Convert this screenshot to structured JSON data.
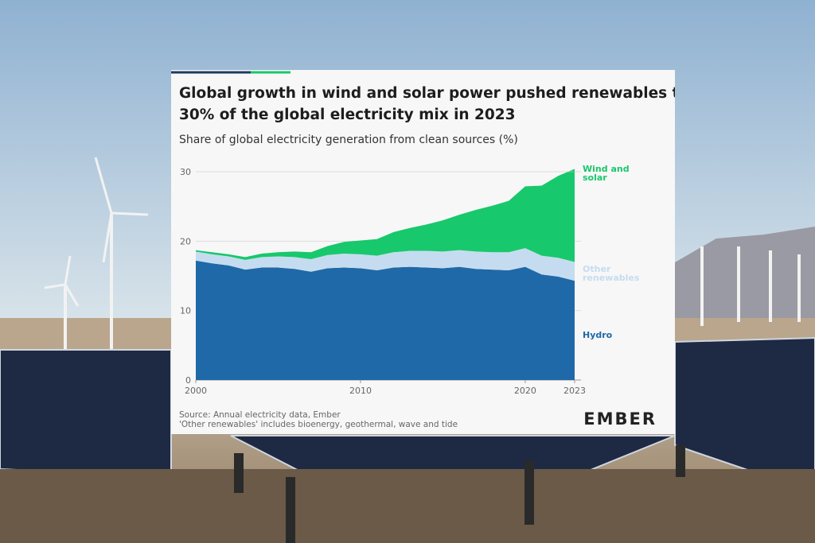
{
  "chart_data": {
    "type": "stacked-area",
    "title": [
      "Global growth in wind and solar power pushed renewables to",
      "30% of the global electricity mix in 2023"
    ],
    "subtitle": "Share of global electricity generation from clean sources (%)",
    "x": [
      2000,
      2001,
      2002,
      2003,
      2004,
      2005,
      2006,
      2007,
      2008,
      2009,
      2010,
      2011,
      2012,
      2013,
      2014,
      2015,
      2016,
      2017,
      2018,
      2019,
      2020,
      2021,
      2022,
      2023
    ],
    "xlim": [
      2000,
      2023
    ],
    "xticks": [
      2000,
      2010,
      2020,
      2023
    ],
    "ylim": [
      0,
      30
    ],
    "yticks": [
      0,
      10,
      20,
      30
    ],
    "grid": true,
    "series": [
      {
        "name": "Hydro",
        "color": "#1f69a8",
        "values": [
          17.2,
          16.8,
          16.5,
          15.9,
          16.2,
          16.2,
          16.0,
          15.6,
          16.1,
          16.2,
          16.1,
          15.8,
          16.2,
          16.3,
          16.2,
          16.1,
          16.3,
          16.0,
          15.9,
          15.8,
          16.3,
          15.2,
          14.9,
          14.3
        ]
      },
      {
        "name": "Other renewables",
        "color": "#c5dcf0",
        "values": [
          1.3,
          1.3,
          1.3,
          1.4,
          1.5,
          1.6,
          1.7,
          1.8,
          1.9,
          2.0,
          2.0,
          2.1,
          2.2,
          2.3,
          2.4,
          2.4,
          2.4,
          2.5,
          2.5,
          2.6,
          2.7,
          2.7,
          2.7,
          2.7
        ]
      },
      {
        "name": "Wind and solar",
        "color": "#18c86c",
        "values": [
          0.2,
          0.3,
          0.3,
          0.4,
          0.5,
          0.6,
          0.8,
          1.0,
          1.3,
          1.7,
          2.0,
          2.4,
          2.9,
          3.3,
          3.8,
          4.5,
          5.1,
          6.0,
          6.7,
          7.4,
          8.9,
          10.1,
          11.8,
          13.4
        ]
      }
    ],
    "source": "Source: Annual electricity data, Ember",
    "note": "'Other renewables' includes bioenergy, geothermal, wave and tide",
    "logo": "EMBER"
  }
}
